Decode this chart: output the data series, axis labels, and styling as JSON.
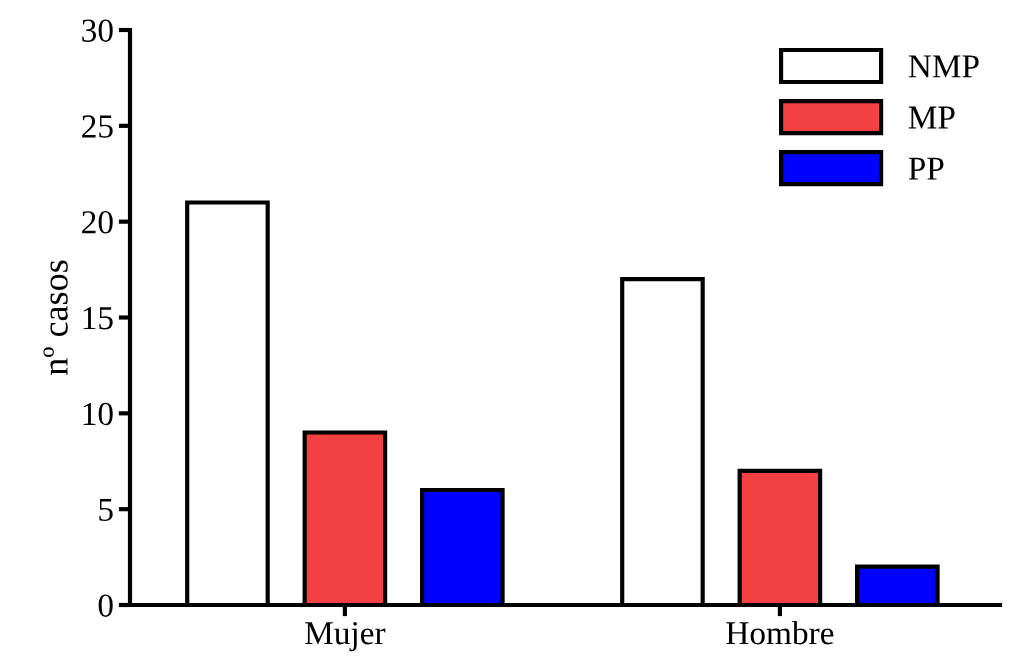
{
  "chart_data": {
    "type": "bar",
    "ylabel": "nº casos",
    "categories": [
      "Mujer",
      "Hombre"
    ],
    "series": [
      {
        "name": "NMP",
        "color": "#ffffff",
        "values": [
          21,
          17
        ]
      },
      {
        "name": "MP",
        "color": "#f44040",
        "values": [
          9,
          7
        ]
      },
      {
        "name": "PP",
        "color": "#0000ff",
        "values": [
          6,
          2
        ]
      }
    ],
    "ylim": [
      0,
      30
    ],
    "yticks": [
      0,
      5,
      10,
      15,
      20,
      25,
      30
    ],
    "grid": false,
    "legend": "top right"
  }
}
